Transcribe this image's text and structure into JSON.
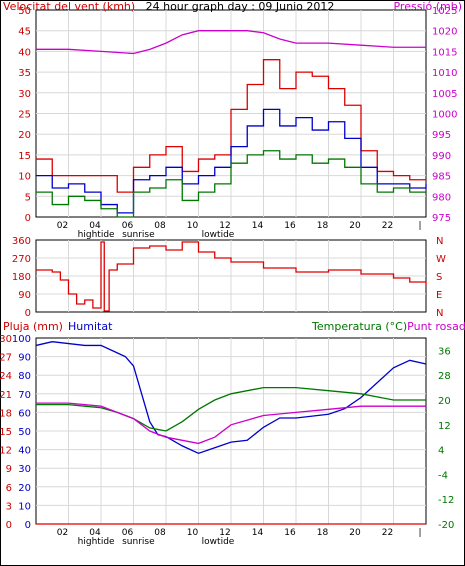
{
  "chart_data": [
    {
      "type": "line",
      "title": "24 hour graph day : 09 Junio 2012",
      "ylabel": "Velocitat del vent (kmh)",
      "y2label": "Pressió (mb)",
      "ylim": [
        0,
        50
      ],
      "y2lim": [
        975,
        1025
      ],
      "yticks": [
        "0",
        "5",
        "10",
        "15",
        "20",
        "25",
        "30",
        "35",
        "40",
        "45",
        "50"
      ],
      "y2ticks": [
        "975",
        "980",
        "985",
        "990",
        "995",
        "1000",
        "1005",
        "1010",
        "1015",
        "1020",
        "1025"
      ],
      "xticks": [
        "02",
        "04",
        "06",
        "08",
        "10",
        "12",
        "14",
        "16",
        "18",
        "20",
        "22",
        "|"
      ],
      "xmarkers": [
        {
          "label": "hightide",
          "hour": 3.7
        },
        {
          "label": "sunrise",
          "hour": 6.3
        },
        {
          "label": "lowtide",
          "hour": 11.2
        }
      ],
      "series": [
        {
          "color": "#dd0000",
          "x": [
            0,
            1,
            2,
            3,
            4,
            5,
            6,
            7,
            8,
            9,
            10,
            11,
            12,
            13,
            14,
            15,
            16,
            17,
            18,
            19,
            20,
            21,
            22,
            23,
            24
          ],
          "values": [
            14,
            10,
            10,
            10,
            10,
            6,
            12,
            15,
            17,
            11,
            14,
            15,
            26,
            32,
            38,
            31,
            35,
            34,
            31,
            27,
            16,
            11,
            10,
            9,
            9
          ]
        },
        {
          "color": "#0000cc",
          "x": [
            0,
            1,
            2,
            3,
            4,
            5,
            6,
            7,
            8,
            9,
            10,
            11,
            12,
            13,
            14,
            15,
            16,
            17,
            18,
            19,
            20,
            21,
            22,
            23,
            24
          ],
          "values": [
            10,
            7,
            8,
            6,
            3,
            1,
            9,
            10,
            12,
            8,
            10,
            12,
            17,
            22,
            26,
            22,
            24,
            21,
            23,
            19,
            12,
            8,
            8,
            7,
            8
          ]
        },
        {
          "color": "#007700",
          "x": [
            0,
            1,
            2,
            3,
            4,
            5,
            6,
            7,
            8,
            9,
            10,
            11,
            12,
            13,
            14,
            15,
            16,
            17,
            18,
            19,
            20,
            21,
            22,
            23,
            24
          ],
          "values": [
            6,
            3,
            5,
            4,
            2,
            0,
            6,
            7,
            9,
            4,
            6,
            8,
            13,
            15,
            16,
            14,
            15,
            13,
            14,
            12,
            8,
            6,
            7,
            6,
            6
          ]
        },
        {
          "color": "#cc00cc",
          "axis": "right",
          "x": [
            0,
            2,
            4,
            6,
            7,
            8,
            9,
            10,
            11,
            12,
            13,
            14,
            15,
            16,
            18,
            20,
            22,
            24
          ],
          "values": [
            1015.5,
            1015.5,
            1015,
            1014.5,
            1015.5,
            1017,
            1019,
            1020,
            1020,
            1020,
            1020,
            1019.5,
            1018,
            1017,
            1017,
            1016.5,
            1016,
            1016
          ]
        }
      ]
    },
    {
      "type": "line",
      "ylabel_right": [
        "N",
        "W",
        "S",
        "E",
        "N"
      ],
      "ylim": [
        0,
        360
      ],
      "yticks": [
        "0",
        "90",
        "180",
        "270",
        "360"
      ],
      "series": [
        {
          "color": "#dd0000",
          "x": [
            0,
            1,
            1.5,
            2,
            2.5,
            3,
            3.5,
            4,
            4.2,
            4.5,
            5,
            6,
            7,
            8,
            9,
            10,
            11,
            12,
            14,
            16,
            18,
            20,
            22,
            23,
            24
          ],
          "values": [
            210,
            200,
            160,
            90,
            40,
            60,
            20,
            350,
            5,
            210,
            240,
            320,
            330,
            310,
            350,
            300,
            270,
            250,
            220,
            200,
            210,
            190,
            170,
            150,
            130
          ]
        }
      ]
    },
    {
      "type": "line",
      "ylabel": "Pluja (mm)",
      "ylabel2": "Humitat",
      "y2label": "Temperatura (°C)",
      "y2label2": "Punt rosada",
      "ylim": [
        0,
        30
      ],
      "yticks": [
        "0",
        "3",
        "6",
        "9",
        "12",
        "15",
        "18",
        "21",
        "24",
        "27",
        "30"
      ],
      "y_humidity_ticks": [
        "0",
        "10",
        "20",
        "30",
        "40",
        "50",
        "60",
        "70",
        "80",
        "90",
        "100"
      ],
      "y2lim": [
        -20,
        40
      ],
      "y2ticks": [
        "-20",
        "-16",
        "-12",
        "-8",
        "-4",
        "0",
        "4",
        "8",
        "12",
        "16",
        "20",
        "24",
        "28",
        "32",
        "36",
        "40"
      ],
      "xticks": [
        "02",
        "04",
        "06",
        "08",
        "10",
        "12",
        "14",
        "16",
        "18",
        "20",
        "22",
        "|"
      ],
      "xmarkers": [
        {
          "label": "hightide",
          "hour": 3.7
        },
        {
          "label": "sunrise",
          "hour": 6.3
        },
        {
          "label": "lowtide",
          "hour": 11.2
        }
      ],
      "series": [
        {
          "color": "#dd0000",
          "axis": "rain",
          "x": [
            0,
            24
          ],
          "values": [
            0,
            0
          ]
        },
        {
          "color": "#0000cc",
          "axis": "humidity",
          "x": [
            0,
            1,
            2,
            3,
            4,
            5,
            5.5,
            6,
            6.5,
            7,
            7.5,
            8,
            9,
            10,
            11,
            12,
            13,
            14,
            15,
            16,
            17,
            18,
            19,
            20,
            21,
            22,
            23,
            24
          ],
          "values": [
            96,
            98,
            97,
            96,
            96,
            92,
            90,
            85,
            70,
            55,
            48,
            47,
            42,
            38,
            41,
            44,
            45,
            52,
            57,
            57,
            58,
            59,
            62,
            68,
            76,
            84,
            88,
            86
          ]
        },
        {
          "color": "#007700",
          "axis": "temperature",
          "x": [
            0,
            1,
            2,
            3,
            4,
            5,
            6,
            7,
            8,
            9,
            10,
            11,
            12,
            14,
            16,
            18,
            20,
            21,
            22,
            24
          ],
          "values": [
            18.5,
            18.5,
            18.5,
            18,
            17.5,
            16,
            14,
            11,
            10,
            13,
            17,
            20,
            22,
            24,
            24,
            23,
            22,
            21,
            20,
            20
          ]
        },
        {
          "color": "#cc00cc",
          "axis": "temperature",
          "x": [
            0,
            2,
            4,
            5,
            6,
            7,
            8,
            9,
            10,
            11,
            12,
            14,
            16,
            18,
            20,
            22,
            24
          ],
          "values": [
            19,
            19,
            18,
            16,
            14,
            10,
            8,
            7,
            6,
            8,
            12,
            15,
            16,
            17,
            18,
            18,
            18
          ]
        }
      ]
    }
  ]
}
